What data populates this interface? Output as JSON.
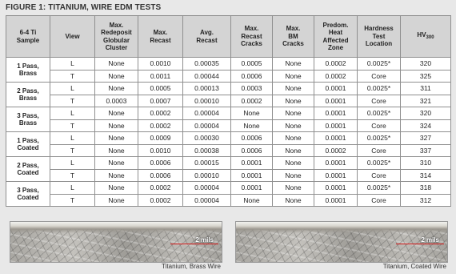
{
  "title": "FIGURE 1: TITANIUM, WIRE EDM TESTS",
  "table": {
    "header": [
      {
        "lines": [
          "6-4 Ti",
          "Sample"
        ]
      },
      {
        "lines": [
          "View"
        ]
      },
      {
        "lines": [
          "Max.",
          "Redeposit",
          "Globular",
          "Cluster"
        ]
      },
      {
        "lines": [
          "Max.",
          "Recast"
        ]
      },
      {
        "lines": [
          "Avg.",
          "Recast"
        ]
      },
      {
        "lines": [
          "Max.",
          "Recast",
          "Cracks"
        ]
      },
      {
        "lines": [
          "Max.",
          "BM",
          "Cracks"
        ]
      },
      {
        "lines": [
          "Predom.",
          "Heat",
          "Affected",
          "Zone"
        ]
      },
      {
        "lines": [
          "Hardness",
          "Test",
          "Location"
        ]
      },
      {
        "lines": [
          "HV"
        ],
        "sub": "300"
      }
    ],
    "groups": [
      {
        "sample": [
          "1 Pass,",
          "Brass"
        ],
        "rows": [
          [
            "L",
            "None",
            "0.0010",
            "0.00035",
            "0.0005",
            "None",
            "0.0002",
            "0.0025*",
            "320"
          ],
          [
            "T",
            "None",
            "0.0011",
            "0.00044",
            "0.0006",
            "None",
            "0.0002",
            "Core",
            "325"
          ]
        ]
      },
      {
        "sample": [
          "2 Pass,",
          "Brass"
        ],
        "rows": [
          [
            "L",
            "None",
            "0.0005",
            "0.00013",
            "0.0003",
            "None",
            "0.0001",
            "0.0025*",
            "311"
          ],
          [
            "T",
            "0.0003",
            "0.0007",
            "0.00010",
            "0.0002",
            "None",
            "0.0001",
            "Core",
            "321"
          ]
        ]
      },
      {
        "sample": [
          "3 Pass,",
          "Brass"
        ],
        "rows": [
          [
            "L",
            "None",
            "0.0002",
            "0.00004",
            "None",
            "None",
            "0.0001",
            "0.0025*",
            "320"
          ],
          [
            "T",
            "None",
            "0.0002",
            "0.00004",
            "None",
            "None",
            "0.0001",
            "Core",
            "324"
          ]
        ]
      },
      {
        "sample": [
          "1 Pass,",
          "Coated"
        ],
        "rows": [
          [
            "L",
            "None",
            "0.0009",
            "0.00030",
            "0.0006",
            "None",
            "0.0001",
            "0.0025*",
            "327"
          ],
          [
            "T",
            "None",
            "0.0010",
            "0.00038",
            "0.0006",
            "None",
            "0.0002",
            "Core",
            "337"
          ]
        ]
      },
      {
        "sample": [
          "2 Pass,",
          "Coated"
        ],
        "rows": [
          [
            "L",
            "None",
            "0.0006",
            "0.00015",
            "0.0001",
            "None",
            "0.0001",
            "0.0025*",
            "310"
          ],
          [
            "T",
            "None",
            "0.0006",
            "0.00010",
            "0.0001",
            "None",
            "0.0001",
            "Core",
            "314"
          ]
        ]
      },
      {
        "sample": [
          "3 Pass,",
          "Coated"
        ],
        "rows": [
          [
            "L",
            "None",
            "0.0002",
            "0.00004",
            "0.0001",
            "None",
            "0.0001",
            "0.0025*",
            "318"
          ],
          [
            "T",
            "None",
            "0.0002",
            "0.00004",
            "None",
            "None",
            "0.0001",
            "Core",
            "312"
          ]
        ]
      }
    ]
  },
  "figures": [
    {
      "scale": "2 mils",
      "caption": "Titanium, Brass Wire"
    },
    {
      "scale": "2 mils",
      "caption": "Titanium, Coated Wire"
    }
  ]
}
